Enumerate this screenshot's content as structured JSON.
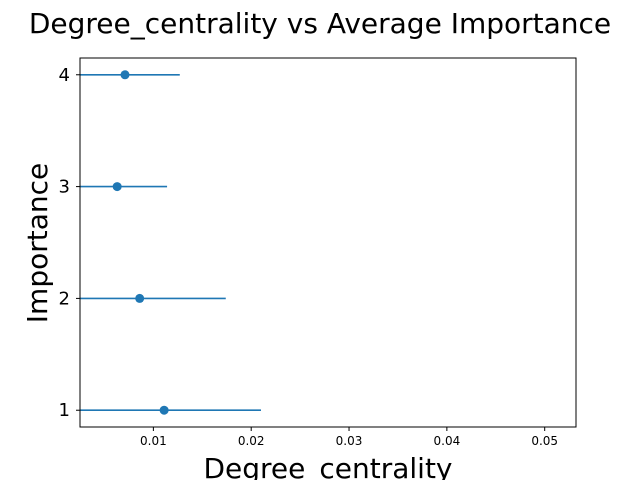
{
  "chart_data": {
    "type": "scatter",
    "title": "Degree_centrality vs Average Importance",
    "xlabel": "Degree_centrality",
    "ylabel": "Importance",
    "xlim": [
      0.0025,
      0.0532
    ],
    "ylim": [
      0.85,
      4.15
    ],
    "x_ticks": [
      "0.01",
      "0.02",
      "0.03",
      "0.04",
      "0.05"
    ],
    "x_tick_values": [
      0.01,
      0.02,
      0.03,
      0.04,
      0.05
    ],
    "y_ticks": [
      "1",
      "2",
      "3",
      "4"
    ],
    "y_tick_values": [
      1,
      2,
      3,
      4
    ],
    "grid": false,
    "color": "#1f77b4",
    "points": [
      {
        "y": 1,
        "x": 0.0111,
        "x_err": 0.0099
      },
      {
        "y": 2,
        "x": 0.0086,
        "x_err": 0.0088
      },
      {
        "y": 3,
        "x": 0.0063,
        "x_err": 0.0051
      },
      {
        "y": 4,
        "x": 0.0071,
        "x_err": 0.0056
      }
    ]
  }
}
